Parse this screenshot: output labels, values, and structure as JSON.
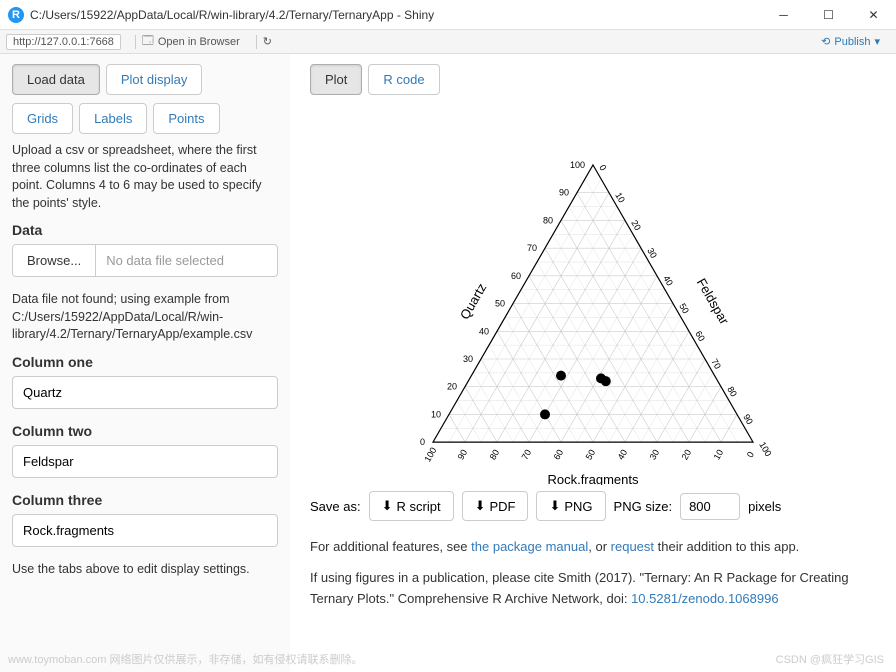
{
  "window": {
    "title": "C:/Users/15922/AppData/Local/R/win-library/4.2/Ternary/TernaryApp - Shiny",
    "icon_label": "R"
  },
  "toolbar": {
    "url": "http://127.0.0.1:7668",
    "open_label": "Open in Browser",
    "publish_label": "Publish"
  },
  "sidebar": {
    "tabs_top": {
      "load": "Load data",
      "plot": "Plot display"
    },
    "tabs_mid": {
      "grids": "Grids",
      "labels": "Labels",
      "points": "Points"
    },
    "upload_hint": "Upload a csv or spreadsheet, where the first three columns list the co-ordinates of each point. Columns 4 to 6 may be used to specify the points' style.",
    "data_heading": "Data",
    "browse_label": "Browse...",
    "no_file": "No data file selected",
    "notfound_msg": "Data file not found; using example from C:/Users/15922/AppData/Local/R/win-library/4.2/Ternary/TernaryApp/example.csv",
    "col1_label": "Column one",
    "col1_val": "Quartz",
    "col2_label": "Column two",
    "col2_val": "Feldspar",
    "col3_label": "Column three",
    "col3_val": "Rock.fragments",
    "footer_hint": "Use the tabs above to edit display settings."
  },
  "main_tabs": {
    "plot": "Plot",
    "rcode": "R code"
  },
  "ternary": {
    "axis_left": "Quartz",
    "axis_right": "Feldspar",
    "axis_bottom": "Rock.fragments",
    "ticks": [
      0,
      10,
      20,
      30,
      40,
      50,
      60,
      70,
      80,
      90,
      100
    ],
    "points": [
      {
        "a": 10,
        "b": 30,
        "c": 60
      },
      {
        "a": 24,
        "b": 28,
        "c": 48
      },
      {
        "a": 23,
        "b": 41,
        "c": 36
      },
      {
        "a": 22,
        "b": 43,
        "c": 35
      }
    ],
    "point_color": "#000000",
    "point_radius": 5,
    "grid_color": "#cccccc",
    "axis_color": "#000000",
    "label_fontsize": 13,
    "tick_fontsize": 9
  },
  "save": {
    "label": "Save as:",
    "rscript": "R script",
    "pdf": "PDF",
    "png": "PNG",
    "size_label": "PNG size:",
    "size_val": "800",
    "size_unit": "pixels"
  },
  "info": {
    "line1_pre": "For additional features, see ",
    "link1": "the package manual",
    "line1_mid": ", or ",
    "link2": "request",
    "line1_post": " their addition to this app.",
    "line2_pre": "If using figures in a publication, please cite Smith (2017). \"Ternary: An R Package for Creating Ternary Plots.\" Comprehensive R Archive Network, doi: ",
    "doi": "10.5281/zenodo.1068996"
  },
  "watermark": {
    "left": "www.toymoban.com  网络图片仅供展示，非存储，如有侵权请联系删除。",
    "right": "CSDN @疯狂学习GIS"
  }
}
